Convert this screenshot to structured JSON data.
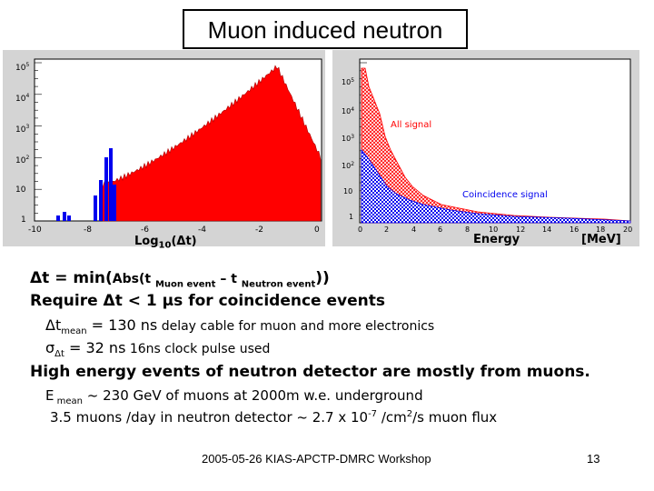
{
  "title": "Muon induced neutron",
  "plots": {
    "left": {
      "y_ticks": [
        "10^5",
        "10^4",
        "10^3",
        "10^2",
        "10",
        "1"
      ],
      "y_tick_base": [
        "10",
        "10",
        "10",
        "10",
        "10",
        "1"
      ],
      "y_tick_exp": [
        "5",
        "4",
        "3",
        "2",
        "",
        ""
      ],
      "x_ticks": [
        "-10",
        "-8",
        "-6",
        "-4",
        "-2",
        "0"
      ],
      "xlabel_main": "Log",
      "xlabel_sub": "10",
      "xlabel_tail": "(Δt)"
    },
    "right": {
      "y_tick_base": [
        "10",
        "10",
        "10",
        "10",
        "10",
        "1"
      ],
      "y_tick_exp": [
        "5",
        "4",
        "3",
        "2",
        "",
        ""
      ],
      "x_ticks": [
        "0",
        "2",
        "4",
        "6",
        "8",
        "10",
        "12",
        "14",
        "16",
        "18",
        "20"
      ],
      "legend_all": "All signal",
      "legend_coinc": "Coincidence signal",
      "xlabel": "Energy",
      "unit": "[MeV]"
    }
  },
  "colors": {
    "red": "#ff0000",
    "blue": "#0000ee",
    "gray": "#d4d4d4"
  },
  "text": {
    "l1_a": "Δt = min(",
    "l1_b": "Abs(t ",
    "l1_sub1": "Muon event",
    "l1_c": " – t ",
    "l1_sub2": "Neutron event",
    "l1_d": "))",
    "l2": "Require  Δt < 1 μs for coincidence events",
    "l3_a": "Δt",
    "l3_sub": "mean",
    "l3_b": " = 130 ns",
    "l3_c": " delay cable for muon and more electronics",
    "l4_a": "σ",
    "l4_sub": "Δt",
    "l4_b": " = 32 ns",
    "l4_c": "  16ns clock pulse used",
    "l5": "High energy events of neutron detector are mostly from muons.",
    "l6_a": "E",
    "l6_sub": " mean",
    "l6_b": "  ~ 230 GeV of muons at 2000m w.e. underground",
    "l7_a": "3.5 muons /day in neutron detector ~ 2.7 x 10",
    "l7_sup": "-7",
    "l7_b": " /cm",
    "l7_sup2": "2",
    "l7_c": "/s muon flux"
  },
  "footer": {
    "workshop": "2005-05-26 KIAS-APCTP-DMRC Workshop",
    "page": "13"
  }
}
